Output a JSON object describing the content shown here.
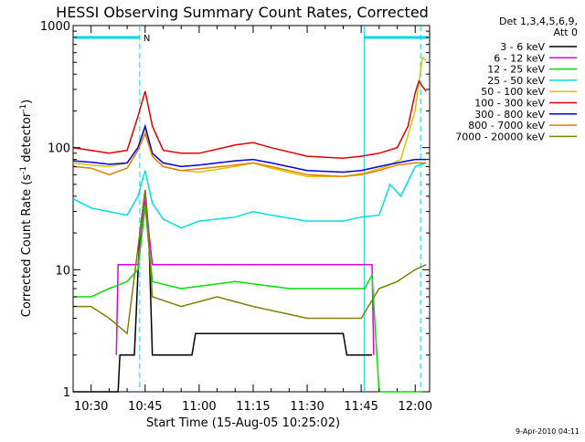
{
  "chart_data": {
    "type": "line",
    "title": "HESSI Observing Summary Count Rates, Corrected",
    "xlabel": "Start Time (15-Aug-05 10:25:02)",
    "ylabel_main": "Corrected Count Rate (s",
    "ylabel_sup1": "-1",
    "ylabel_mid": " detector",
    "ylabel_sup2": "-1",
    "ylabel_end": ")",
    "yscale": "log",
    "ylim": [
      1,
      1000
    ],
    "y_ticks": [
      {
        "value": 1,
        "label": "1"
      },
      {
        "value": 10,
        "label": "10"
      },
      {
        "value": 100,
        "label": "100"
      },
      {
        "value": 1000,
        "label": "1000"
      }
    ],
    "xlim": [
      "10:25:02",
      "12:04:00"
    ],
    "x_ticks": [
      {
        "value": 30,
        "label": "10:30"
      },
      {
        "value": 45,
        "label": "10:45"
      },
      {
        "value": 60,
        "label": "11:00"
      },
      {
        "value": 75,
        "label": "11:15"
      },
      {
        "value": 90,
        "label": "11:30"
      },
      {
        "value": 105,
        "label": "11:45"
      },
      {
        "value": 120,
        "label": "12:00"
      }
    ],
    "legend_header": [
      "Det 1,3,4,5,6,9,",
      "Att 0"
    ],
    "legend_placement": "right, outside plot",
    "series": [
      {
        "name": "3 - 6 keV",
        "color": "#000000",
        "points": [
          [
            25,
            1
          ],
          [
            37.5,
            1
          ],
          [
            38,
            2
          ],
          [
            42,
            2
          ],
          [
            43.5,
            20
          ],
          [
            45,
            45
          ],
          [
            46,
            20
          ],
          [
            47,
            2
          ],
          [
            58,
            2
          ],
          [
            59,
            3
          ],
          [
            100,
            3
          ],
          [
            101,
            2
          ],
          [
            108,
            2
          ]
        ]
      },
      {
        "name": "6 - 12 keV",
        "color": "#e000e0",
        "points": [
          [
            37,
            2
          ],
          [
            37.5,
            11
          ],
          [
            43,
            11
          ],
          [
            45,
            38
          ],
          [
            47,
            11
          ],
          [
            108,
            11
          ],
          [
            108.5,
            2
          ]
        ]
      },
      {
        "name": "12 - 25 keV",
        "color": "#00e000",
        "points": [
          [
            25,
            6
          ],
          [
            30,
            6
          ],
          [
            35,
            7
          ],
          [
            40,
            8
          ],
          [
            43,
            10
          ],
          [
            45,
            33
          ],
          [
            47,
            8
          ],
          [
            55,
            7
          ],
          [
            70,
            8
          ],
          [
            85,
            7
          ],
          [
            100,
            7
          ],
          [
            106,
            7
          ],
          [
            107,
            8
          ],
          [
            108,
            9
          ],
          [
            110,
            1
          ],
          [
            122,
            1
          ]
        ]
      },
      {
        "name": "25 - 50 keV",
        "color": "#00e0e0",
        "points": [
          [
            25,
            38
          ],
          [
            30,
            32
          ],
          [
            35,
            30
          ],
          [
            40,
            28
          ],
          [
            43,
            40
          ],
          [
            45,
            65
          ],
          [
            47,
            35
          ],
          [
            50,
            26
          ],
          [
            55,
            22
          ],
          [
            60,
            25
          ],
          [
            70,
            27
          ],
          [
            75,
            30
          ],
          [
            80,
            28
          ],
          [
            90,
            25
          ],
          [
            100,
            25
          ],
          [
            105,
            27
          ],
          [
            110,
            28
          ],
          [
            113,
            50
          ],
          [
            116,
            40
          ],
          [
            120,
            70
          ],
          [
            123,
            75
          ]
        ]
      },
      {
        "name": "50 - 100 keV",
        "color": "#e0c000",
        "points": [
          [
            25,
            75
          ],
          [
            30,
            72
          ],
          [
            35,
            70
          ],
          [
            40,
            75
          ],
          [
            43,
            100
          ],
          [
            45,
            145
          ],
          [
            47,
            85
          ],
          [
            50,
            70
          ],
          [
            55,
            65
          ],
          [
            60,
            63
          ],
          [
            70,
            70
          ],
          [
            75,
            75
          ],
          [
            80,
            68
          ],
          [
            90,
            58
          ],
          [
            100,
            58
          ],
          [
            106,
            62
          ],
          [
            112,
            70
          ],
          [
            116,
            80
          ],
          [
            120,
            200
          ],
          [
            122,
            550
          ],
          [
            123,
            520
          ]
        ]
      },
      {
        "name": "100 - 300 keV",
        "color": "#e00000",
        "points": [
          [
            25,
            100
          ],
          [
            30,
            95
          ],
          [
            35,
            90
          ],
          [
            40,
            95
          ],
          [
            43,
            180
          ],
          [
            45,
            290
          ],
          [
            47,
            150
          ],
          [
            50,
            95
          ],
          [
            55,
            90
          ],
          [
            60,
            90
          ],
          [
            70,
            105
          ],
          [
            75,
            110
          ],
          [
            80,
            100
          ],
          [
            90,
            85
          ],
          [
            100,
            82
          ],
          [
            105,
            85
          ],
          [
            110,
            90
          ],
          [
            115,
            100
          ],
          [
            118,
            150
          ],
          [
            120,
            280
          ],
          [
            121,
            350
          ],
          [
            123,
            290
          ]
        ]
      },
      {
        "name": "300 - 800 keV",
        "color": "#0000e0",
        "points": [
          [
            25,
            78
          ],
          [
            30,
            76
          ],
          [
            35,
            73
          ],
          [
            40,
            75
          ],
          [
            43,
            100
          ],
          [
            45,
            150
          ],
          [
            47,
            90
          ],
          [
            50,
            75
          ],
          [
            55,
            70
          ],
          [
            60,
            72
          ],
          [
            70,
            78
          ],
          [
            75,
            80
          ],
          [
            80,
            75
          ],
          [
            90,
            65
          ],
          [
            100,
            63
          ],
          [
            105,
            65
          ],
          [
            110,
            70
          ],
          [
            115,
            75
          ],
          [
            120,
            80
          ],
          [
            123,
            80
          ]
        ]
      },
      {
        "name": "800 - 7000 keV",
        "color": "#e08000",
        "points": [
          [
            25,
            70
          ],
          [
            30,
            68
          ],
          [
            35,
            60
          ],
          [
            40,
            68
          ],
          [
            43,
            95
          ],
          [
            45,
            130
          ],
          [
            47,
            85
          ],
          [
            50,
            70
          ],
          [
            55,
            65
          ],
          [
            60,
            67
          ],
          [
            70,
            72
          ],
          [
            75,
            75
          ],
          [
            80,
            70
          ],
          [
            90,
            60
          ],
          [
            100,
            58
          ],
          [
            105,
            60
          ],
          [
            110,
            65
          ],
          [
            115,
            72
          ],
          [
            120,
            75
          ],
          [
            123,
            75
          ]
        ]
      },
      {
        "name": "7000 - 20000 keV",
        "color": "#808000",
        "points": [
          [
            25,
            5
          ],
          [
            30,
            5
          ],
          [
            35,
            4
          ],
          [
            40,
            3
          ],
          [
            43,
            15
          ],
          [
            45,
            45
          ],
          [
            47,
            6
          ],
          [
            55,
            5
          ],
          [
            65,
            6
          ],
          [
            75,
            5
          ],
          [
            90,
            4
          ],
          [
            100,
            4
          ],
          [
            105,
            4
          ],
          [
            110,
            7
          ],
          [
            115,
            8
          ],
          [
            120,
            10
          ],
          [
            123,
            11
          ]
        ]
      }
    ],
    "attenuator_state_label": "N",
    "footer_timestamp": "9-Apr-2010 04:11"
  }
}
